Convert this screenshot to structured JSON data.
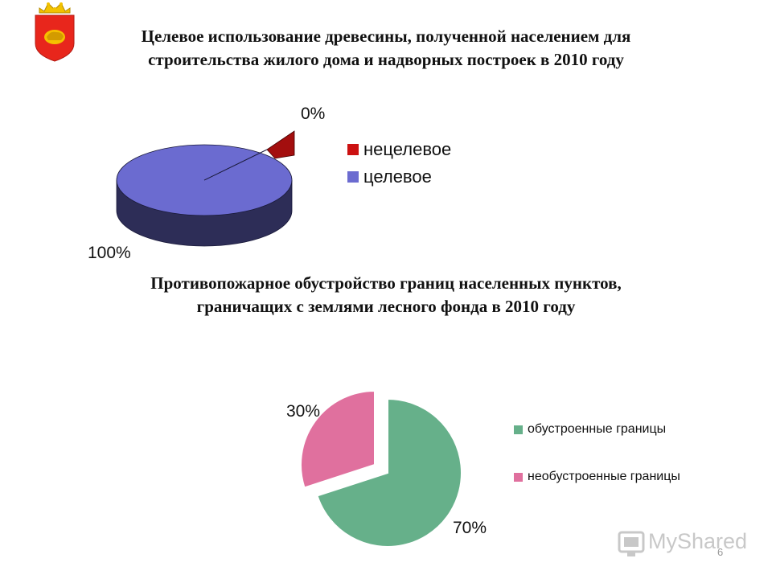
{
  "chart_data": [
    {
      "type": "pie",
      "style": "3d",
      "title_lines": [
        "Целевое использование древесины, полученной населением для",
        "строительства жилого дома и надворных построек в 2010 году"
      ],
      "slices": [
        {
          "name": "нецелевое",
          "value": 0,
          "label": "0%",
          "color": "#cc1111"
        },
        {
          "name": "целевое",
          "value": 100,
          "label": "100%",
          "color": "#6b6bd0"
        }
      ],
      "legend_position": "right"
    },
    {
      "type": "pie",
      "style": "exploded",
      "title_lines": [
        "Противопожарное обустройство границ населенных пунктов,",
        "граничащих с землями лесного фонда в 2010 году"
      ],
      "slices": [
        {
          "name": "обустроенные границы",
          "value": 70,
          "label": "70%",
          "color": "#66b08a"
        },
        {
          "name": "необустроенные границы",
          "value": 30,
          "label": "30%",
          "color": "#e0709e"
        }
      ],
      "legend_position": "right"
    }
  ],
  "watermark": {
    "brand": "MyShared"
  },
  "page_number": "6"
}
